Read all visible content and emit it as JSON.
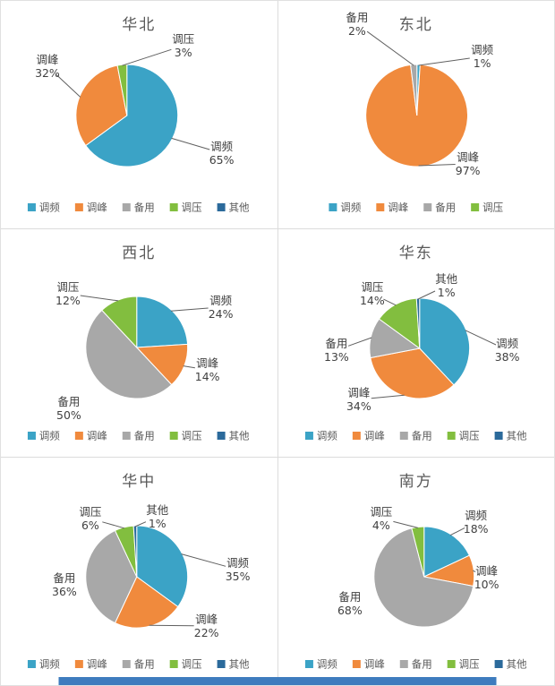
{
  "palette": {
    "调频": "#3BA3C6",
    "调峰": "#F08A3D",
    "备用": "#A8A8A8",
    "调压": "#82BE3F",
    "其他": "#2B6A9B"
  },
  "bottom_banner": {
    "color": "#3E7CBE"
  },
  "chart_data": [
    {
      "type": "pie",
      "title": "华北",
      "legend_position": "bottom",
      "pie_center": [
        141,
        128
      ],
      "pie_radius": 57,
      "slices": [
        {
          "label": "调频",
          "value": 65,
          "label_pos": [
            247,
            170
          ],
          "leader": true
        },
        {
          "label": "调峰",
          "value": 32,
          "label_pos": [
            52,
            73
          ],
          "leader": true
        },
        {
          "label": "调压",
          "value": 3,
          "label_pos": [
            204,
            50
          ],
          "leader": true
        }
      ],
      "legend": [
        "调频",
        "调峰",
        "备用",
        "调压",
        "其他"
      ]
    },
    {
      "type": "pie",
      "title": "东北",
      "legend_position": "bottom",
      "pie_center": [
        155,
        128
      ],
      "pie_radius": 57,
      "slices": [
        {
          "label": "调频",
          "value": 1,
          "label_pos": [
            228,
            62
          ],
          "leader": true
        },
        {
          "label": "调峰",
          "value": 97,
          "label_pos": [
            212,
            182
          ],
          "leader": true
        },
        {
          "label": "备用",
          "value": 2,
          "label_pos": [
            88,
            26
          ],
          "leader": true
        }
      ],
      "legend": [
        "调频",
        "调峰",
        "备用",
        "调压"
      ]
    },
    {
      "type": "pie",
      "title": "西北",
      "legend_position": "bottom",
      "pie_center": [
        152,
        132
      ],
      "pie_radius": 57,
      "slices": [
        {
          "label": "调频",
          "value": 24,
          "label_pos": [
            246,
            87
          ],
          "leader": true
        },
        {
          "label": "调峰",
          "value": 14,
          "label_pos": [
            231,
            157
          ],
          "leader": true
        },
        {
          "label": "备用",
          "value": 50,
          "label_pos": [
            76,
            200
          ],
          "leader": false
        },
        {
          "label": "调压",
          "value": 12,
          "label_pos": [
            75,
            72
          ],
          "leader": true
        }
      ],
      "legend": [
        "调频",
        "调峰",
        "备用",
        "调压",
        "其他"
      ]
    },
    {
      "type": "pie",
      "title": "华东",
      "legend_position": "bottom",
      "pie_center": [
        158,
        133
      ],
      "pie_radius": 56,
      "slices": [
        {
          "label": "调频",
          "value": 38,
          "label_pos": [
            256,
            135
          ],
          "leader": true
        },
        {
          "label": "调峰",
          "value": 34,
          "label_pos": [
            90,
            190
          ],
          "leader": true
        },
        {
          "label": "备用",
          "value": 13,
          "label_pos": [
            65,
            135
          ],
          "leader": true
        },
        {
          "label": "调压",
          "value": 14,
          "label_pos": [
            105,
            72
          ],
          "leader": true
        },
        {
          "label": "其他",
          "value": 1,
          "label_pos": [
            188,
            63
          ],
          "leader": true
        }
      ],
      "legend": [
        "调频",
        "调峰",
        "备用",
        "调压",
        "其他"
      ]
    },
    {
      "type": "pie",
      "title": "华中",
      "legend_position": "bottom",
      "pie_center": [
        152,
        133
      ],
      "pie_radius": 57,
      "slices": [
        {
          "label": "调频",
          "value": 35,
          "label_pos": [
            265,
            125
          ],
          "leader": true
        },
        {
          "label": "调峰",
          "value": 22,
          "label_pos": [
            230,
            188
          ],
          "leader": true
        },
        {
          "label": "备用",
          "value": 36,
          "label_pos": [
            71,
            142
          ],
          "leader": false
        },
        {
          "label": "调压",
          "value": 6,
          "label_pos": [
            100,
            68
          ],
          "leader": true
        },
        {
          "label": "其他",
          "value": 1,
          "label_pos": [
            175,
            66
          ],
          "leader": true
        }
      ],
      "legend": [
        "调频",
        "调峰",
        "备用",
        "调压",
        "其他"
      ]
    },
    {
      "type": "pie",
      "title": "南方",
      "legend_position": "bottom",
      "pie_center": [
        163,
        133
      ],
      "pie_radius": 56,
      "slices": [
        {
          "label": "调频",
          "value": 18,
          "label_pos": [
            221,
            72
          ],
          "leader": true
        },
        {
          "label": "调峰",
          "value": 10,
          "label_pos": [
            233,
            134
          ],
          "leader": true
        },
        {
          "label": "备用",
          "value": 68,
          "label_pos": [
            80,
            163
          ],
          "leader": false
        },
        {
          "label": "调压",
          "value": 4,
          "label_pos": [
            115,
            68
          ],
          "leader": true
        }
      ],
      "legend": [
        "调频",
        "调峰",
        "备用",
        "调压",
        "其他"
      ]
    }
  ]
}
